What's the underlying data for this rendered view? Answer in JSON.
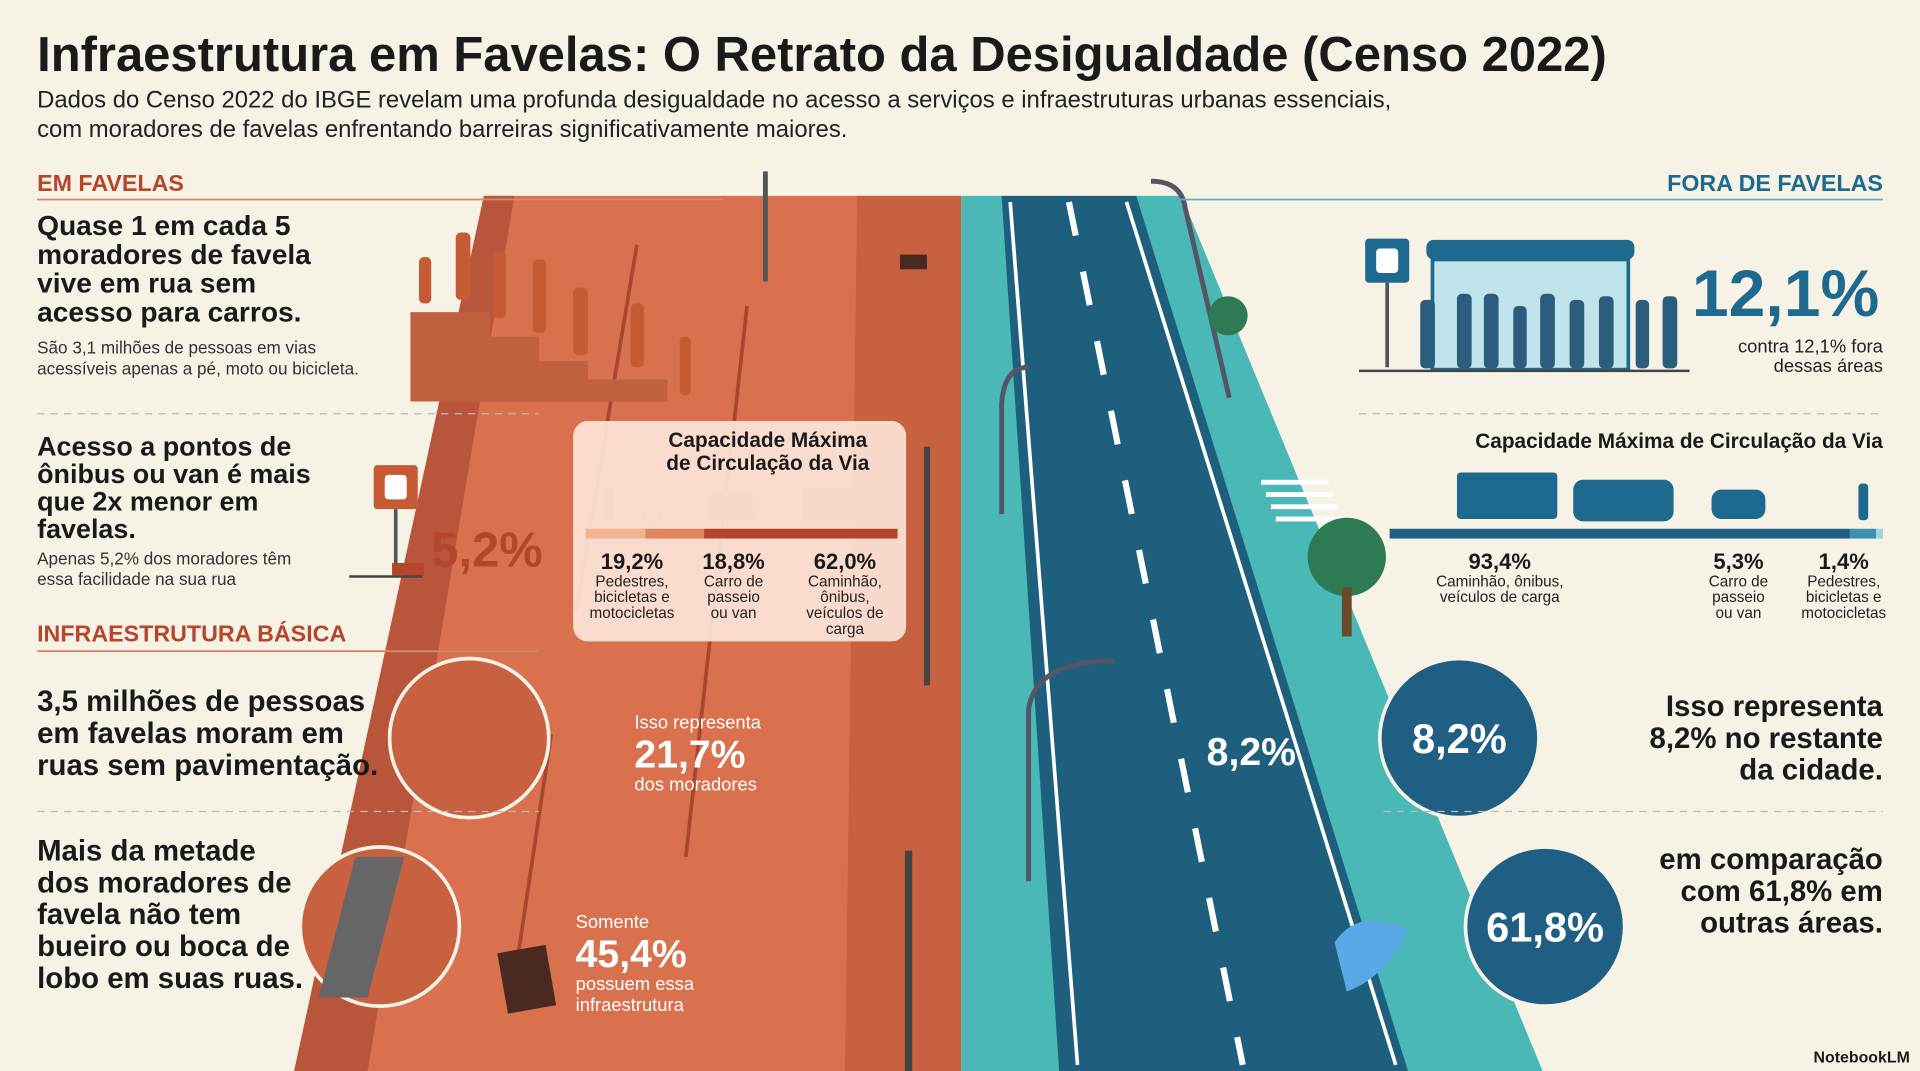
{
  "title": "Infraestrutura em Favelas: O Retrato da Desigualdade (Censo 2022)",
  "subtitle": [
    "Dados do Censo 2022 do IBGE revelam uma profunda desigualdade no acesso a serviços e infraestruturas urbanas essenciais,",
    "com moradores de favelas enfrentando barreiras significativamente maiores."
  ],
  "left": {
    "heading": "EM FAVELAS",
    "block0": {
      "headline": [
        "Quase 1 em cada 5",
        "moradores de favela",
        "vive em rua sem",
        "acesso para carros."
      ],
      "note": [
        "São 3,1 milhões de pessoas em vias",
        "acessíveis apenas a pé, moto ou bicicleta."
      ]
    },
    "block1": {
      "headline": [
        "Acesso a pontos de",
        "ônibus ou van é mais",
        "que 2x menor em",
        "favelas."
      ],
      "note": [
        "Apenas 5,2% dos moradores têm",
        "essa facilidade na sua rua"
      ],
      "stat": "5,2%"
    },
    "section": "INFRAESTRUTURA BÁSICA",
    "block2": {
      "headline": [
        "3,5 milhões de pessoas",
        "em favelas moram em",
        "ruas sem pavimentação."
      ],
      "road_pre": "Isso representa",
      "road_stat": "21,7%",
      "road_post": "dos moradores"
    },
    "block3": {
      "headline": [
        "Mais da metade",
        "dos moradores de",
        "favela não tem",
        "bueiro ou boca de",
        "lobo em suas ruas."
      ],
      "road_pre": "Somente",
      "road_stat": "45,4%",
      "road_post": [
        "possuem essa",
        "infraestrutura"
      ]
    },
    "capacity": {
      "title": [
        "Capacidade Máxima",
        "de Circulação da Via"
      ],
      "segments": [
        {
          "value": 19.2,
          "label": "19,2%",
          "desc": [
            "Pedestres,",
            "bicicletas e",
            "motocicletas"
          ],
          "color": "#f2b48f"
        },
        {
          "value": 18.8,
          "label": "18,8%",
          "desc": [
            "Carro de",
            "passeio",
            "ou van"
          ],
          "color": "#e0855c"
        },
        {
          "value": 62.0,
          "label": "62,0%",
          "desc": [
            "Caminhão,",
            "ônibus,",
            "veículos de",
            "carga"
          ],
          "color": "#b5462b"
        }
      ]
    }
  },
  "right": {
    "heading": "FORA DE FAVELAS",
    "stat": "12,1%",
    "note": [
      "contra 12,1% fora",
      "dessas áreas"
    ],
    "capacity": {
      "title": "Capacidade Máxima de Circulação da Via",
      "segments": [
        {
          "value": 93.4,
          "label": "93,4%",
          "desc": [
            "Caminhão, ônibus,",
            "veículos de carga"
          ],
          "color": "#1e5f83"
        },
        {
          "value": 5.3,
          "label": "5,3%",
          "desc": [
            "Carro de",
            "passeio",
            "ou van"
          ],
          "color": "#3d8fb3"
        },
        {
          "value": 1.4,
          "label": "1,4%",
          "desc": [
            "Pedestres,",
            "bicicletas e",
            "motocicletas"
          ],
          "color": "#9ed3e0"
        }
      ]
    },
    "road_stat": "8,2%",
    "circle1": "8,2%",
    "text1": [
      "Isso representa",
      "8,2% no restante",
      "da cidade."
    ],
    "circle2": "61,8%",
    "text2": [
      "em comparação",
      "com 61,8% em",
      "outras áreas."
    ]
  },
  "footer": "NotebookLM"
}
